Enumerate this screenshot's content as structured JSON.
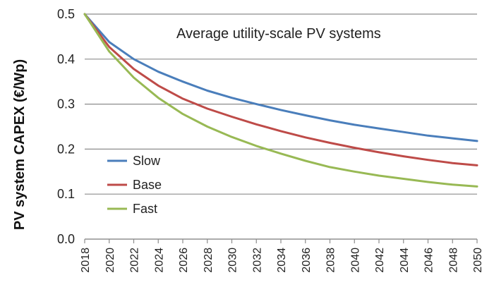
{
  "chart_data": {
    "type": "line",
    "title": "Average utility-scale PV systems",
    "xlabel": "",
    "ylabel": "PV system CAPEX (€/Wp)",
    "xlim": [
      2018,
      2050
    ],
    "ylim": [
      0,
      0.5
    ],
    "yticks": [
      "0.0",
      "0.1",
      "0.2",
      "0.3",
      "0.4",
      "0.5"
    ],
    "xticks": [
      "2018",
      "2020",
      "2022",
      "2024",
      "2026",
      "2028",
      "2030",
      "2032",
      "2034",
      "2036",
      "2038",
      "2040",
      "2042",
      "2044",
      "2046",
      "2048",
      "2050"
    ],
    "grid": "horizontal",
    "legend_position": "lower-left",
    "x": [
      2018,
      2020,
      2022,
      2024,
      2026,
      2028,
      2030,
      2032,
      2034,
      2036,
      2038,
      2040,
      2042,
      2044,
      2046,
      2048,
      2050
    ],
    "series": [
      {
        "name": "Slow",
        "color": "#4a7ebb",
        "values": [
          0.5,
          0.438,
          0.4,
          0.372,
          0.35,
          0.33,
          0.314,
          0.3,
          0.287,
          0.275,
          0.264,
          0.254,
          0.246,
          0.238,
          0.23,
          0.224,
          0.218
        ]
      },
      {
        "name": "Base",
        "color": "#be4b48",
        "values": [
          0.5,
          0.427,
          0.378,
          0.341,
          0.312,
          0.29,
          0.272,
          0.255,
          0.24,
          0.226,
          0.214,
          0.203,
          0.193,
          0.184,
          0.176,
          0.169,
          0.164
        ]
      },
      {
        "name": "Fast",
        "color": "#98b954",
        "values": [
          0.5,
          0.417,
          0.359,
          0.314,
          0.278,
          0.25,
          0.227,
          0.207,
          0.19,
          0.174,
          0.16,
          0.15,
          0.141,
          0.134,
          0.127,
          0.121,
          0.117
        ]
      }
    ]
  }
}
